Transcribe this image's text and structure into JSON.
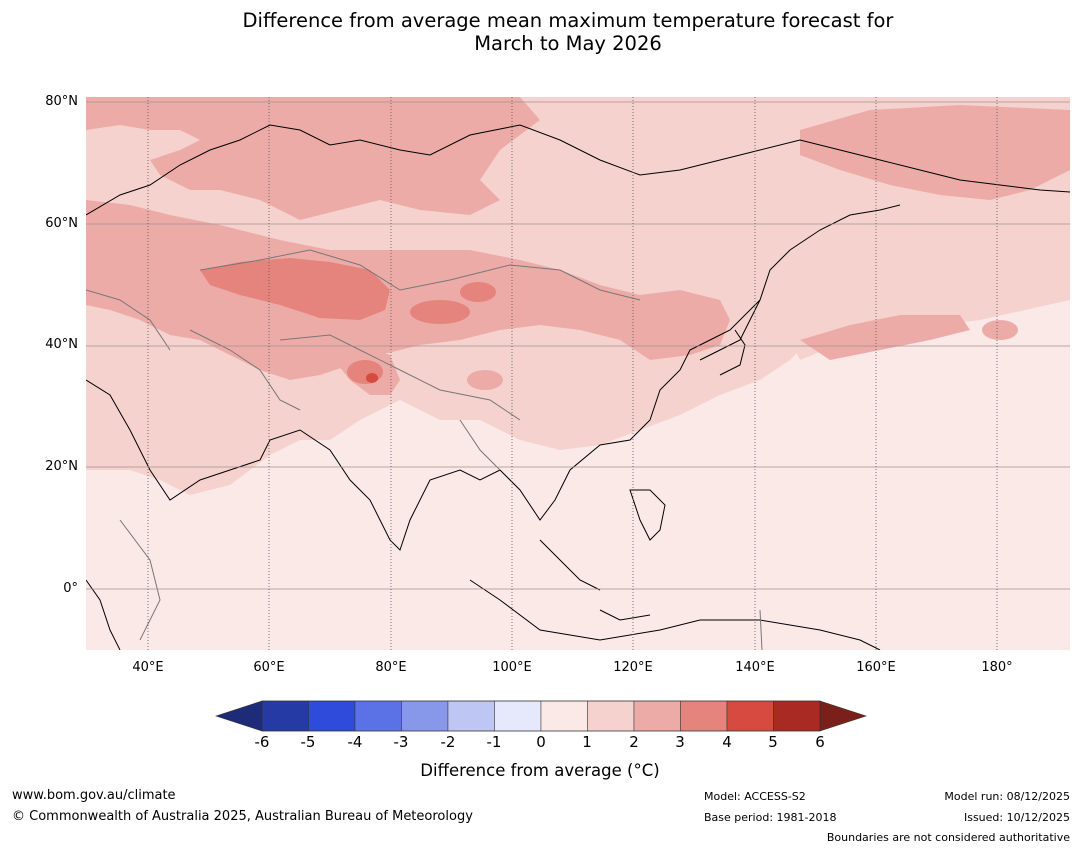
{
  "title": {
    "line1": "Difference from average mean maximum temperature forecast for",
    "line2": "March to May 2026"
  },
  "map": {
    "lat_labels": [
      "80°N",
      "60°N",
      "40°N",
      "20°N",
      "0°"
    ],
    "lon_labels": [
      "40°E",
      "60°E",
      "80°E",
      "100°E",
      "120°E",
      "140°E",
      "160°E",
      "180°"
    ],
    "ocean_color": "#fbe9e7",
    "land_color": "#f5d2ce",
    "warm_color": "#edaba8",
    "hot_color": "#e5837d",
    "hotter_color": "#d64a40"
  },
  "colorbar": {
    "ticks": [
      "-6",
      "-5",
      "-4",
      "-3",
      "-2",
      "-1",
      "0",
      "1",
      "2",
      "3",
      "4",
      "5",
      "6"
    ],
    "colors": [
      "#263aa6",
      "#2e4bdc",
      "#5b72e6",
      "#8798eb",
      "#bec6f4",
      "#e6e9fb",
      "#fbe9e7",
      "#f5d2ce",
      "#edaba8",
      "#e5837d",
      "#d64a40",
      "#a82a22"
    ],
    "low_extend_color": "#1e2b78",
    "high_extend_color": "#7a1f1a",
    "label": "Difference from average (°C)"
  },
  "footer": {
    "website": "www.bom.gov.au/climate",
    "copyright": "© Commonwealth of Australia 2025, Australian Bureau of Meteorology",
    "model": "Model: ACCESS-S2",
    "base_period": "Base period: 1981-2018",
    "model_run": "Model run: 08/12/2025",
    "issued": "Issued: 10/12/2025",
    "disclaimer": "Boundaries are not considered authoritative"
  }
}
